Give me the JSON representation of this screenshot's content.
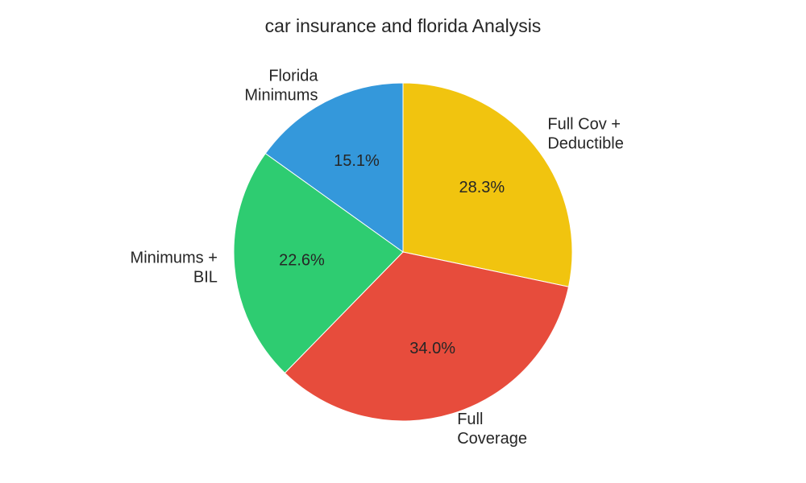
{
  "chart_data": {
    "type": "pie",
    "title": "car insurance and florida Analysis",
    "categories": [
      "Full Cov +\nDeductible",
      "Full\nCoverage",
      "Minimums +\nBIL",
      "Florida\nMinimums"
    ],
    "values": [
      28.3,
      34.0,
      22.6,
      15.1
    ],
    "value_labels": [
      "28.3%",
      "34.0%",
      "22.6%",
      "15.1%"
    ],
    "colors": [
      "#f1c40f",
      "#e74c3c",
      "#2ecc71",
      "#3498db"
    ]
  }
}
